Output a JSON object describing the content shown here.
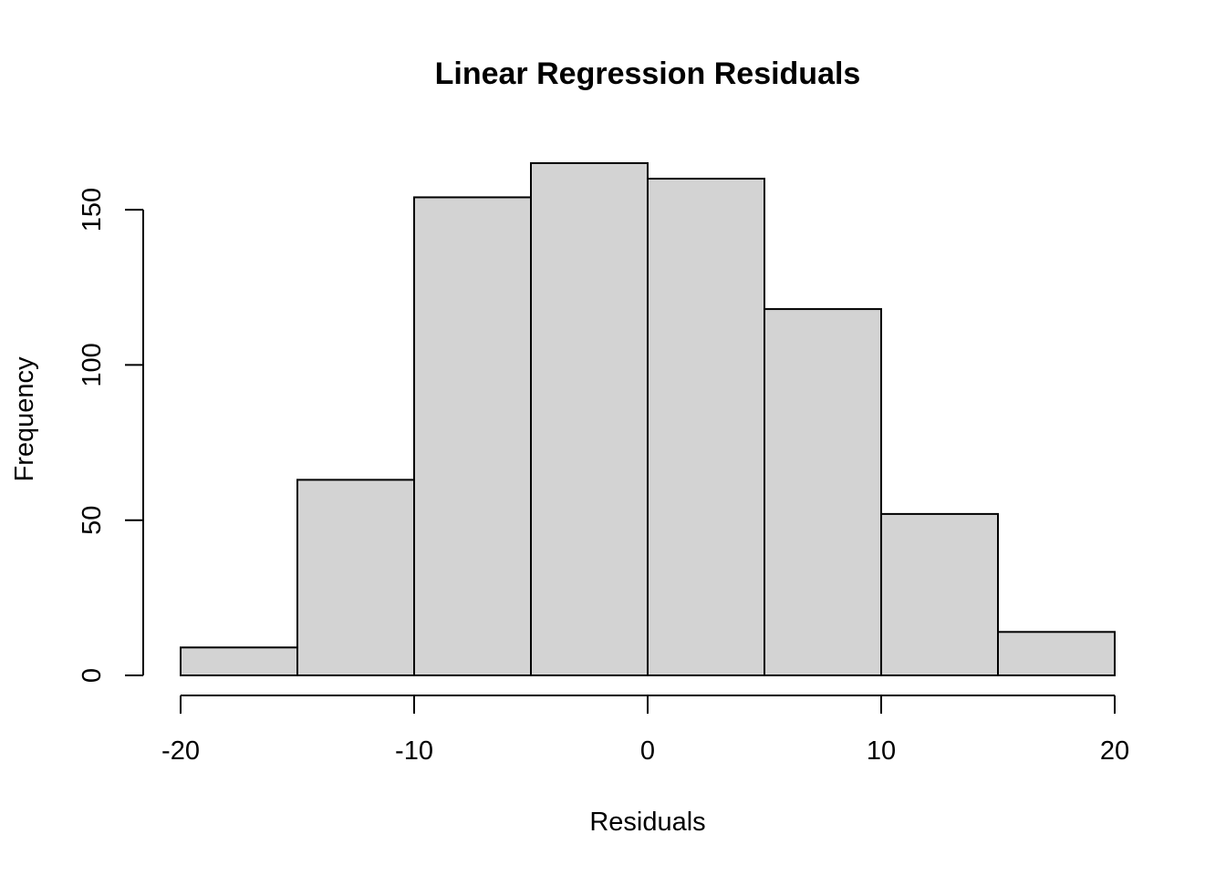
{
  "chart_data": {
    "type": "bar",
    "title": "Linear Regression Residuals",
    "xlabel": "Residuals",
    "ylabel": "Frequency",
    "bins": [
      {
        "start": -20,
        "end": -15,
        "count": 9
      },
      {
        "start": -15,
        "end": -10,
        "count": 63
      },
      {
        "start": -10,
        "end": -5,
        "count": 154
      },
      {
        "start": -5,
        "end": 0,
        "count": 165
      },
      {
        "start": 0,
        "end": 5,
        "count": 160
      },
      {
        "start": 5,
        "end": 10,
        "count": 118
      },
      {
        "start": 10,
        "end": 15,
        "count": 52
      },
      {
        "start": 15,
        "end": 20,
        "count": 14
      }
    ],
    "xticks": [
      -20,
      -10,
      0,
      10,
      20
    ],
    "xtick_labels": [
      "-20",
      "-10",
      "0",
      "10",
      "20"
    ],
    "yticks": [
      0,
      50,
      100,
      150
    ],
    "ytick_labels": [
      "0",
      "50",
      "100",
      "150"
    ],
    "xlim": [
      -20,
      20
    ],
    "ylim": [
      0,
      165
    ],
    "bar_color": "#d3d3d3",
    "edge_color": "#000000",
    "grid": false
  }
}
